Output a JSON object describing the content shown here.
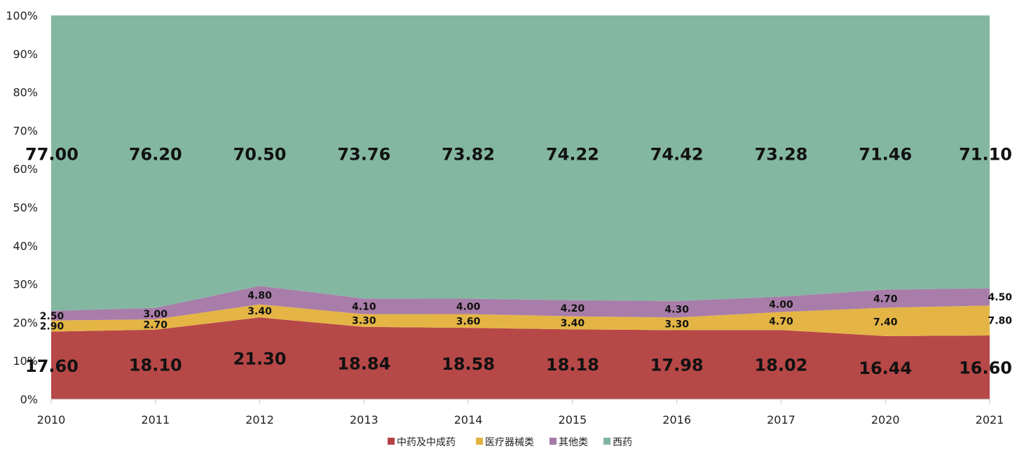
{
  "chart_data": {
    "type": "area",
    "stacked": true,
    "percent": true,
    "categories": [
      "2010",
      "2011",
      "2012",
      "2013",
      "2014",
      "2015",
      "2016",
      "2017",
      "2020",
      "2021"
    ],
    "series": [
      {
        "name": "中药及中成药",
        "color": "#b54242",
        "values": [
          17.6,
          18.1,
          21.3,
          18.84,
          18.58,
          18.18,
          17.98,
          18.02,
          16.44,
          16.6
        ]
      },
      {
        "name": "医疗器械类",
        "color": "#e3b33f",
        "values": [
          2.9,
          2.7,
          3.4,
          3.3,
          3.6,
          3.4,
          3.3,
          4.7,
          7.4,
          7.8
        ]
      },
      {
        "name": "其他类",
        "color": "#a679a6",
        "values": [
          2.5,
          3.0,
          4.8,
          4.1,
          4.0,
          4.2,
          4.3,
          4.0,
          4.7,
          4.5
        ]
      },
      {
        "name": "西药",
        "color": "#80b59f",
        "values": [
          77.0,
          76.2,
          70.5,
          73.76,
          73.82,
          74.22,
          74.42,
          73.28,
          71.46,
          71.1
        ]
      }
    ],
    "y_ticks": [
      "0%",
      "10%",
      "20%",
      "30%",
      "40%",
      "50%",
      "60%",
      "70%",
      "80%",
      "90%",
      "100%"
    ],
    "ylim": [
      0,
      100
    ],
    "grid": false,
    "legend_position": "bottom",
    "title": "",
    "xlabel": "",
    "ylabel": ""
  }
}
